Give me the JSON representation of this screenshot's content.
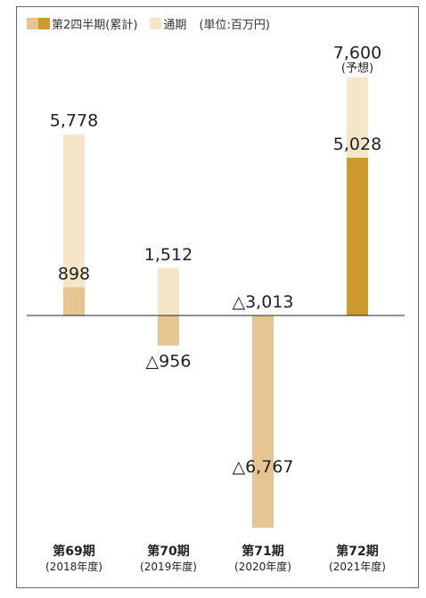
{
  "chart_data": {
    "type": "bar",
    "unit": "(単位:百万円)",
    "categories": [
      "第69期",
      "第70期",
      "第71期",
      "第72期"
    ],
    "category_years": [
      "(2018年度)",
      "(2019年度)",
      "(2020年度)",
      "(2021年度)"
    ],
    "series": [
      {
        "name": "第2四半期(累計)",
        "values": [
          898,
          -956,
          -6767,
          5028
        ],
        "labels": [
          "898",
          "△956",
          "△6,767",
          "5,028"
        ]
      },
      {
        "name": "通期",
        "values": [
          5778,
          1512,
          -3013,
          7600
        ],
        "labels": [
          "5,778",
          "1,512",
          "△3,013",
          "7,600"
        ],
        "notes": [
          "",
          "",
          "",
          "(予想)"
        ]
      }
    ],
    "colors": {
      "q2": "#E6C590",
      "q2_forecast": "#CC9A2E",
      "annual": "#F5E6CA",
      "legend_q2_light": "#E6C590",
      "legend_q2_dark": "#CC9A2E",
      "legend_annual": "#F5E6CA"
    },
    "ylim": [
      -8000,
      8000
    ],
    "grid": false,
    "legend_position": "top-left"
  }
}
